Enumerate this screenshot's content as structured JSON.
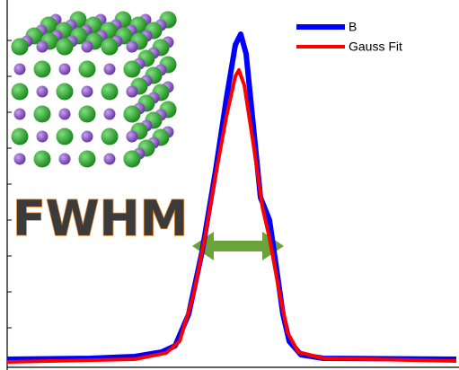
{
  "chart_data": {
    "type": "line",
    "annotation": "FWHM",
    "series": [
      {
        "name": "B",
        "color": "#0000ff",
        "x": [
          0,
          18.4,
          28.4,
          34.4,
          37.4,
          40.4,
          43.4,
          46.4,
          48.8,
          50.8,
          52,
          53.2,
          54.8,
          56.4,
          58.4,
          60,
          61.4,
          62.8,
          65.4,
          70.4,
          100
        ],
        "values": [
          1.25,
          1.5,
          2,
          3.25,
          5,
          13.75,
          31.25,
          53.75,
          73.75,
          88.75,
          91.75,
          86.25,
          66.25,
          46.25,
          40,
          26.25,
          13.75,
          6.25,
          2.5,
          1.5,
          1.25
        ]
      },
      {
        "name": "Gauss Fit",
        "color": "#ff0000",
        "x": [
          0,
          28.4,
          35.4,
          38.4,
          41.4,
          44,
          46.4,
          48.8,
          50.8,
          51.6,
          52.8,
          54.8,
          56.8,
          58.4,
          60.4,
          62.4,
          64.8,
          70.4,
          100
        ],
        "values": [
          0.5,
          1.25,
          3,
          6.25,
          18.75,
          35,
          52.5,
          68.75,
          80,
          81.75,
          77.5,
          61.25,
          43.75,
          35,
          21.25,
          8.75,
          3.25,
          1.5,
          0.75
        ]
      }
    ],
    "xlim": [
      0,
      100
    ],
    "ylim": [
      0,
      100
    ],
    "yticks": [
      10,
      20,
      30,
      40,
      50,
      60,
      70,
      80,
      90
    ],
    "legend": "top-right"
  }
}
